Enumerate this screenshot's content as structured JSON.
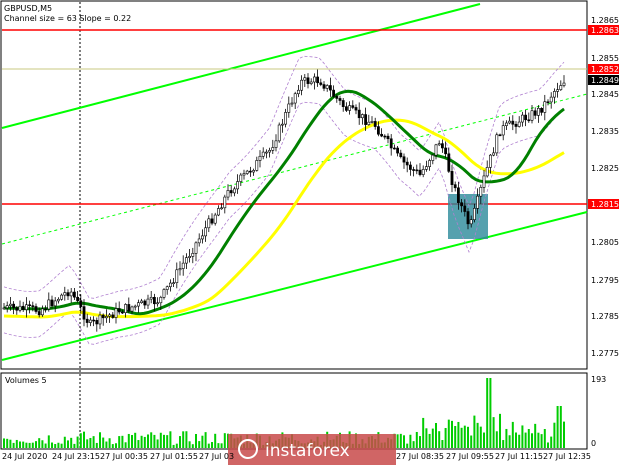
{
  "header": {
    "symbol_label": "GBPUSD,M5",
    "channel_info": "Channel size = 63 Slope = 0.22"
  },
  "volume_panel": {
    "title": "Volumes 5",
    "max_label": "193",
    "zero_label": "0"
  },
  "price_axis": {
    "labels": [
      "1.2865",
      "1.2855",
      "1.2845",
      "1.2835",
      "1.2825",
      "1.2805",
      "1.2795",
      "1.2785",
      "1.2775"
    ]
  },
  "price_tags": {
    "upper_resistance": "1.2863",
    "mid_level": "1.2852",
    "current_price": "1.2849",
    "support": "1.2815"
  },
  "time_axis": {
    "labels": [
      "24 Jul 2020",
      "24 Jul 23:15",
      "27 Jul 00:35",
      "27 Jul 01:55",
      "27 Jul 03",
      "27 Jul 08:35",
      "27 Jul 09:55",
      "27 Jul 11:15",
      "27 Jul 12:35"
    ]
  },
  "watermark": {
    "text": "instaforex"
  },
  "colors": {
    "candle": "#000000",
    "resistance": "#ff0000",
    "channel": "#00ff00",
    "ma_fast": "#008000",
    "ma_slow": "#ffff00",
    "volume": "#00cc00",
    "highlight": "#2a8a9a"
  }
}
